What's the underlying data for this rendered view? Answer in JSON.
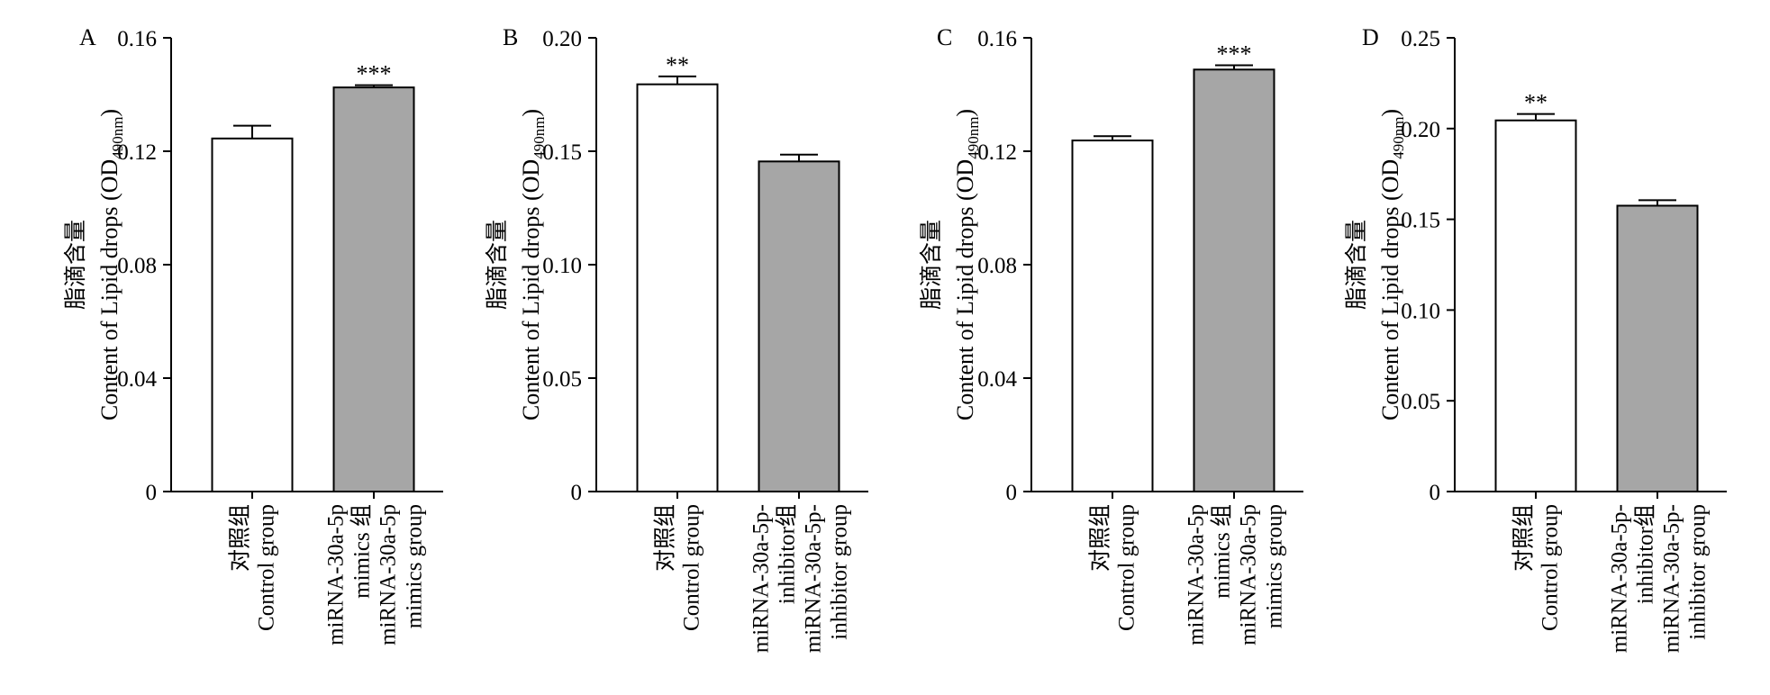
{
  "chart_data": [
    {
      "type": "bar",
      "panel": "A",
      "ylabel_cn": "脂滴含量",
      "ylabel_en": "Content of Lipid drops (OD",
      "ylabel_sub": "490nm",
      "ylabel_close": ")",
      "ylim": [
        0,
        0.16
      ],
      "yticks": [
        "0",
        "0.04",
        "0.08",
        "0.12",
        "0.16"
      ],
      "ytick_values": [
        0,
        0.04,
        0.08,
        0.12,
        0.16
      ],
      "categories": [
        {
          "lines": [
            "对照组",
            "Control group"
          ]
        },
        {
          "lines": [
            "miRNA-30a-5p",
            "mimics 组",
            "miRNA-30a-5p",
            "mimics group"
          ]
        }
      ],
      "values": [
        0.1245,
        0.1425
      ],
      "errors": [
        0.0045,
        0.0008
      ],
      "fill": [
        "#ffffff",
        "#a6a6a6"
      ],
      "significance": [
        "",
        "***"
      ]
    },
    {
      "type": "bar",
      "panel": "B",
      "ylabel_cn": "脂滴含量",
      "ylabel_en": "Content of Lipid drops (OD",
      "ylabel_sub": "490nm",
      "ylabel_close": ")",
      "ylim": [
        0,
        0.2
      ],
      "yticks": [
        "0",
        "0.05",
        "0.10",
        "0.15",
        "0.20"
      ],
      "ytick_values": [
        0,
        0.05,
        0.1,
        0.15,
        0.2
      ],
      "categories": [
        {
          "lines": [
            "对照组",
            "Control group"
          ]
        },
        {
          "lines": [
            "miRNA-30a-5p-",
            "inhibitor组",
            "miRNA-30a-5p-",
            "inhibitor group"
          ]
        }
      ],
      "values": [
        0.1795,
        0.1455
      ],
      "errors": [
        0.0035,
        0.003
      ],
      "fill": [
        "#ffffff",
        "#a6a6a6"
      ],
      "significance": [
        "**",
        ""
      ]
    },
    {
      "type": "bar",
      "panel": "C",
      "ylabel_cn": "脂滴含量",
      "ylabel_en": "Content of Lipid drops (OD",
      "ylabel_sub": "490nm",
      "ylabel_close": ")",
      "ylim": [
        0,
        0.16
      ],
      "yticks": [
        "0",
        "0.04",
        "0.08",
        "0.12",
        "0.16"
      ],
      "ytick_values": [
        0,
        0.04,
        0.08,
        0.12,
        0.16
      ],
      "categories": [
        {
          "lines": [
            "对照组",
            "Control group"
          ]
        },
        {
          "lines": [
            "miRNA-30a-5p",
            "mimics 组",
            "miRNA-30a-5p",
            "mimics group"
          ]
        }
      ],
      "values": [
        0.1238,
        0.1488
      ],
      "errors": [
        0.0015,
        0.0015
      ],
      "fill": [
        "#ffffff",
        "#a6a6a6"
      ],
      "significance": [
        "",
        "***"
      ]
    },
    {
      "type": "bar",
      "panel": "D",
      "ylabel_cn": "脂滴含量",
      "ylabel_en": "Content of Lipid drops (OD",
      "ylabel_sub": "490nm",
      "ylabel_close": ")",
      "ylim": [
        0,
        0.25
      ],
      "yticks": [
        "0",
        "0.05",
        "0.10",
        "0.15",
        "0.20",
        "0.25"
      ],
      "ytick_values": [
        0,
        0.05,
        0.1,
        0.15,
        0.2,
        0.25
      ],
      "categories": [
        {
          "lines": [
            "对照组",
            "Control group"
          ]
        },
        {
          "lines": [
            "miRNA-30a-5p-",
            "inhibitor组",
            "miRNA-30a-5p-",
            "inhibitor group"
          ]
        }
      ],
      "values": [
        0.2045,
        0.1575
      ],
      "errors": [
        0.0035,
        0.003
      ],
      "fill": [
        "#ffffff",
        "#a6a6a6"
      ],
      "significance": [
        "**",
        ""
      ]
    }
  ]
}
